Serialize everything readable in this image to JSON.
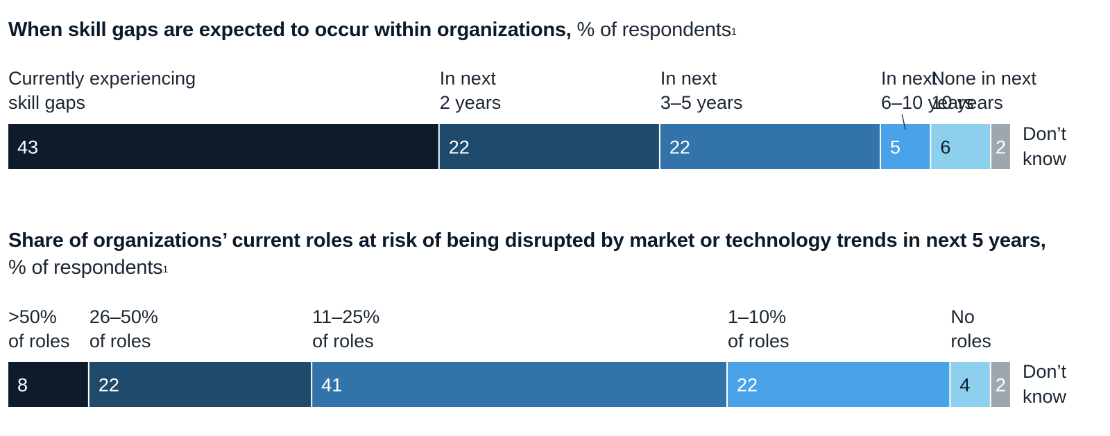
{
  "charts_meta": [
    {
      "title_bold": "When skill gaps are expected to occur within organizations,",
      "title_unit": "% of respondents",
      "footnote_mark": "1"
    },
    {
      "title_bold": "Share of organizations’ current roles at risk of being disrupted by market or technology trends in next 5 years,",
      "title_unit": "% of respondents",
      "footnote_mark": "1"
    }
  ],
  "colors": {
    "dark": "#0d1b2a",
    "navy": "#1f4a6b",
    "mid_blue": "#3274a9",
    "bright_blue": "#4aa3e8",
    "light_blue": "#8dd0ee",
    "gray": "#9ea7ae"
  },
  "chart_data": [
    {
      "type": "bar",
      "stacked": true,
      "orientation": "horizontal",
      "categories": [
        "Currently experiencing skill gaps",
        "In next 2 years",
        "In next 3–5 years",
        "In next 6–10 years",
        "None in next 10 years",
        "Don’t know"
      ],
      "label_lines": [
        [
          "Currently experiencing",
          "skill gaps"
        ],
        [
          "In next",
          "2 years"
        ],
        [
          "In next",
          "3–5 years"
        ],
        [
          "In next",
          "6–10 years"
        ],
        [
          "None in next",
          "10 years"
        ],
        [
          "Don’t",
          "know"
        ]
      ],
      "values": [
        43,
        22,
        22,
        5,
        6,
        2
      ],
      "colors": [
        "#0d1b2a",
        "#1f4a6b",
        "#3274a9",
        "#4aa3e8",
        "#8dd0ee",
        "#9ea7ae"
      ],
      "value_text_colors": [
        "#ffffff",
        "#ffffff",
        "#ffffff",
        "#ffffff",
        "#0d1b2a",
        "#ffffff"
      ],
      "title": "When skill gaps are expected to occur within organizations, % of respondents"
    },
    {
      "type": "bar",
      "stacked": true,
      "orientation": "horizontal",
      "categories": [
        ">50% of roles",
        "26–50% of roles",
        "11–25% of roles",
        "1–10% of roles",
        "No roles",
        "Don’t know"
      ],
      "label_lines": [
        [
          ">50%",
          "of roles"
        ],
        [
          "26–50%",
          "of roles"
        ],
        [
          "11–25%",
          "of roles"
        ],
        [
          "1–10%",
          "of roles"
        ],
        [
          "No",
          "roles"
        ],
        [
          "Don’t",
          "know"
        ]
      ],
      "values": [
        8,
        22,
        41,
        22,
        4,
        2
      ],
      "colors": [
        "#0d1b2a",
        "#1f4a6b",
        "#3274a9",
        "#4aa3e8",
        "#8dd0ee",
        "#9ea7ae"
      ],
      "value_text_colors": [
        "#ffffff",
        "#ffffff",
        "#ffffff",
        "#ffffff",
        "#0d1b2a",
        "#ffffff"
      ],
      "title": "Share of organizations’ current roles at risk of being disrupted by market or technology trends in next 5 years, % of respondents"
    }
  ]
}
